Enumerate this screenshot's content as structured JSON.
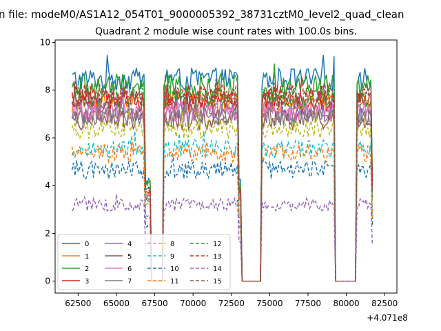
{
  "chart_data": {
    "type": "line",
    "suptitle": "n file: modeM0/AS1A12_054T01_9000005392_38731cztM0_level2_quad_clean",
    "title": "Quadrant 2 module wise count rates with 100.0s bins.",
    "xlabel": "",
    "ylabel": "",
    "x_offset_label": "+4.071e8",
    "xlim": [
      61000,
      83300
    ],
    "ylim": [
      -0.5,
      10.1
    ],
    "x_ticks": [
      62500,
      65000,
      67500,
      70000,
      72500,
      75000,
      77500,
      80000,
      82500
    ],
    "x_tick_labels": [
      "62500",
      "65000",
      "67500",
      "70000",
      "72500",
      "75000",
      "77500",
      "80000",
      "82500"
    ],
    "y_ticks": [
      0,
      2,
      4,
      6,
      8,
      10
    ],
    "y_tick_labels": [
      "0",
      "2",
      "4",
      "6",
      "8",
      "10"
    ],
    "grid": false,
    "legend_placement": "lower-left",
    "legend_columns": 4,
    "x_range": [
      62100,
      81700
    ],
    "bin_seconds": 100,
    "segments": [
      [
        62100,
        66800
      ],
      [
        68100,
        72900
      ],
      [
        74500,
        79200
      ],
      [
        80700,
        81600
      ]
    ],
    "gaps": [
      [
        67300,
        68000
      ],
      [
        73200,
        74400
      ],
      [
        79300,
        80600
      ]
    ],
    "series": [
      {
        "name": "0",
        "color": "#1f77b4",
        "dash": "solid",
        "level": 8.45,
        "noise": 0.22
      },
      {
        "name": "1",
        "color": "#ff7f0e",
        "dash": "solid",
        "level": 7.45,
        "noise": 0.22
      },
      {
        "name": "2",
        "color": "#2ca02c",
        "dash": "solid",
        "level": 8.15,
        "noise": 0.24
      },
      {
        "name": "3",
        "color": "#d62728",
        "dash": "solid",
        "level": 7.5,
        "noise": 0.2
      },
      {
        "name": "4",
        "color": "#9467bd",
        "dash": "solid",
        "level": 7.05,
        "noise": 0.2
      },
      {
        "name": "5",
        "color": "#8c564b",
        "dash": "solid",
        "level": 6.75,
        "noise": 0.2
      },
      {
        "name": "6",
        "color": "#e377c2",
        "dash": "solid",
        "level": 7.1,
        "noise": 0.2
      },
      {
        "name": "7",
        "color": "#7f7f7f",
        "dash": "solid",
        "level": 6.9,
        "noise": 0.18
      },
      {
        "name": "8",
        "color": "#bcbd22",
        "dash": "dashed",
        "level": 6.35,
        "noise": 0.18
      },
      {
        "name": "9",
        "color": "#17becf",
        "dash": "dashed",
        "level": 5.55,
        "noise": 0.17
      },
      {
        "name": "10",
        "color": "#1f77b4",
        "dash": "dashed",
        "level": 4.65,
        "noise": 0.17
      },
      {
        "name": "11",
        "color": "#ff7f0e",
        "dash": "dashed",
        "level": 5.35,
        "noise": 0.17
      },
      {
        "name": "12",
        "color": "#2ca02c",
        "dash": "dashed",
        "level": 7.7,
        "noise": 0.2
      },
      {
        "name": "13",
        "color": "#d62728",
        "dash": "dashed",
        "level": 7.8,
        "noise": 0.2
      },
      {
        "name": "14",
        "color": "#9467bd",
        "dash": "dashed",
        "level": 3.2,
        "noise": 0.12
      },
      {
        "name": "15",
        "color": "#8c564b",
        "dash": "dashed",
        "level": 7.6,
        "noise": 0.2
      }
    ]
  }
}
